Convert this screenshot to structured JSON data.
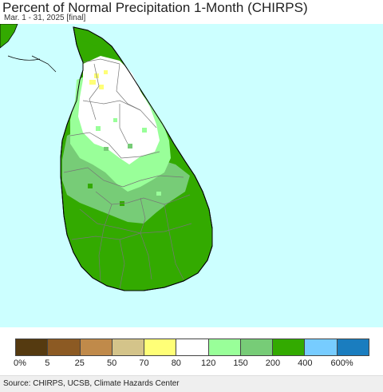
{
  "header": {
    "title": "Percent of Normal Precipitation 1-Month (CHIRPS)",
    "subtitle": "Mar. 1 - 31, 2025 [final]"
  },
  "map": {
    "colors": {
      "ocean": "#ccffff",
      "dry_70_80": "#ffff77",
      "normal_80_120": "#ffffff",
      "wet_120_150": "#99ff99",
      "wet_150_200": "#77cc77",
      "wet_200_400": "#33aa00",
      "boundary": "#777777",
      "coast": "#000000"
    }
  },
  "legend": {
    "colors": [
      "#553a10",
      "#8c5a23",
      "#c08a4a",
      "#d4c48a",
      "#ffff77",
      "#ffffff",
      "#99ff99",
      "#77cc77",
      "#33aa00",
      "#77ccff",
      "#1a7dbf"
    ],
    "labels": [
      "0%",
      "5",
      "25",
      "50",
      "70",
      "80",
      "120",
      "150",
      "200",
      "400",
      "600%"
    ]
  },
  "footer": {
    "source": "Source: CHIRPS, UCSB, Climate Hazards Center"
  }
}
